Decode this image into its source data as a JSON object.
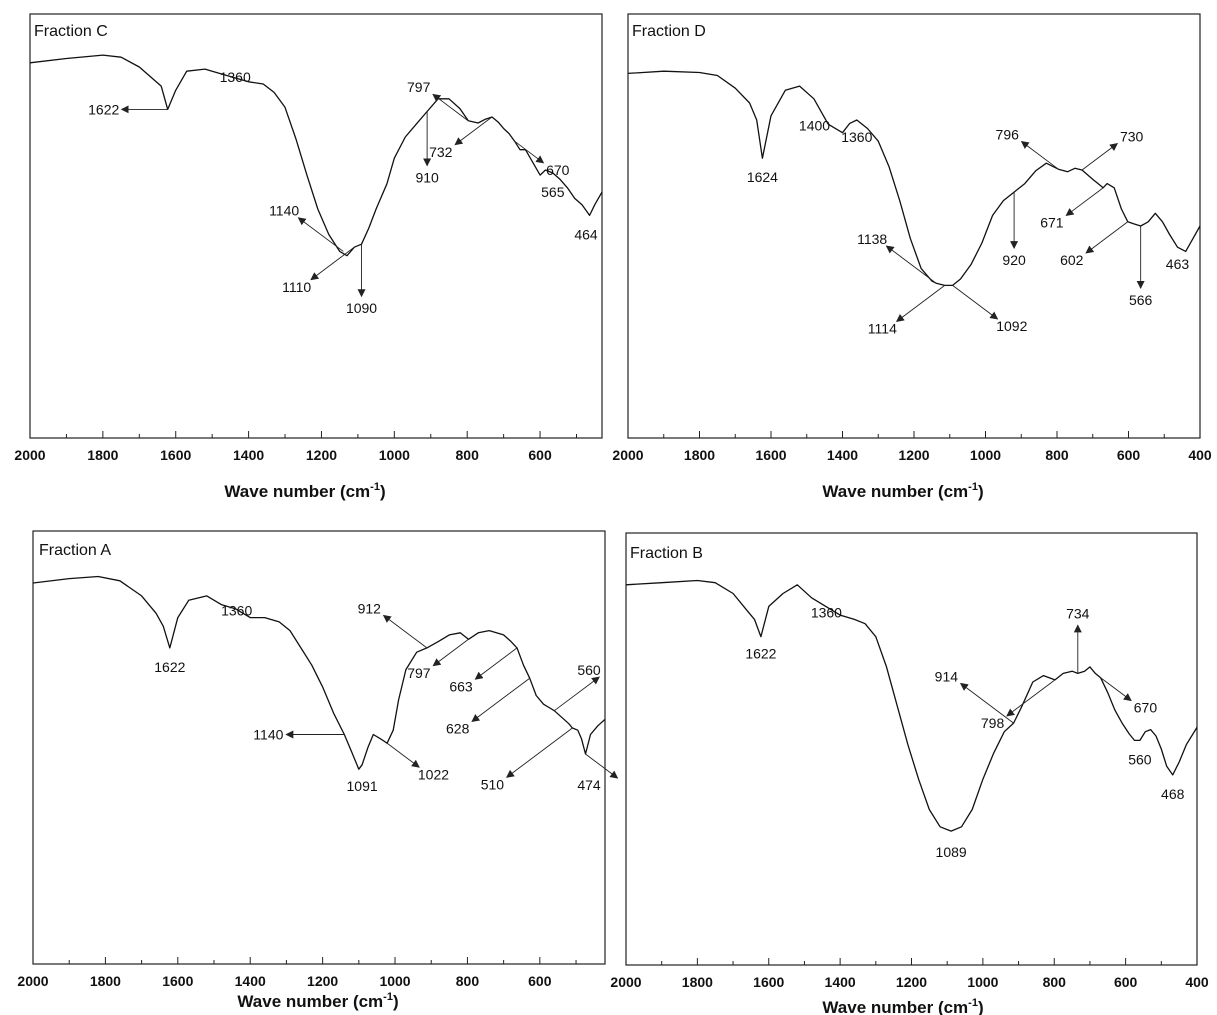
{
  "chart_data": [
    {
      "type": "line",
      "title": "Fraction C",
      "xlabel": "Wave number (cm-1)",
      "xlabel_main": "Wave number (cm",
      "xlabel_sup": "-1",
      "xlabel_tail": ")",
      "xlim": [
        2000,
        430
      ],
      "x_ticks": [
        2000,
        1800,
        1600,
        1400,
        1200,
        1000,
        800,
        600
      ],
      "x_tick_labels": [
        "2000",
        "1800",
        "1600",
        "1400",
        "1200",
        "1000",
        "800",
        "600"
      ],
      "ylim": [
        0,
        1
      ],
      "y_unit": "relative transmittance (no printed scale)",
      "series": [
        {
          "x": [
            2000,
            1900,
            1800,
            1750,
            1700,
            1660,
            1640,
            1622,
            1600,
            1570,
            1520,
            1480,
            1440,
            1400,
            1360,
            1330,
            1300,
            1270,
            1240,
            1210,
            1180,
            1150,
            1130,
            1110,
            1090,
            1070,
            1050,
            1020,
            1000,
            970,
            940,
            910,
            880,
            850,
            820,
            797,
            770,
            750,
            732,
            715,
            700,
            685,
            670,
            655,
            640,
            620,
            600,
            585,
            565,
            545,
            525,
            505,
            485,
            464,
            450,
            430
          ],
          "y": [
            0.885,
            0.895,
            0.903,
            0.898,
            0.875,
            0.845,
            0.83,
            0.775,
            0.82,
            0.865,
            0.87,
            0.86,
            0.85,
            0.84,
            0.835,
            0.815,
            0.78,
            0.705,
            0.62,
            0.54,
            0.48,
            0.44,
            0.43,
            0.45,
            0.457,
            0.495,
            0.54,
            0.6,
            0.66,
            0.71,
            0.74,
            0.77,
            0.8,
            0.8,
            0.777,
            0.748,
            0.743,
            0.752,
            0.757,
            0.745,
            0.73,
            0.718,
            0.7,
            0.68,
            0.68,
            0.65,
            0.62,
            0.632,
            0.625,
            0.61,
            0.59,
            0.565,
            0.55,
            0.525,
            0.55,
            0.58
          ]
        }
      ],
      "annotations": [
        {
          "text": "1622",
          "x": 1622,
          "y": 0.775
        },
        {
          "text": "1360",
          "x": 1360,
          "y": 0.835
        },
        {
          "text": "797",
          "x": 797,
          "y": 0.748
        },
        {
          "text": "910",
          "x": 910,
          "y": 0.77
        },
        {
          "text": "732",
          "x": 732,
          "y": 0.757
        },
        {
          "text": "670",
          "x": 670,
          "y": 0.7
        },
        {
          "text": "565",
          "x": 565,
          "y": 0.625
        },
        {
          "text": "464",
          "x": 464,
          "y": 0.525
        },
        {
          "text": "1140",
          "x": 1140,
          "y": 0.44
        },
        {
          "text": "1110",
          "x": 1110,
          "y": 0.45
        },
        {
          "text": "1090",
          "x": 1090,
          "y": 0.457
        }
      ]
    },
    {
      "type": "line",
      "title": "Fraction D",
      "xlabel": "Wave number (cm-1)",
      "xlabel_main": "Wave number (cm",
      "xlabel_sup": "-1",
      "xlabel_tail": ")",
      "xlim": [
        2000,
        400
      ],
      "x_ticks": [
        2000,
        1800,
        1600,
        1400,
        1200,
        1000,
        800,
        600,
        400
      ],
      "x_tick_labels": [
        "2000",
        "1800",
        "1600",
        "1400",
        "1200",
        "1000",
        "800",
        "600",
        "400"
      ],
      "ylim": [
        0,
        1
      ],
      "y_unit": "relative transmittance (no printed scale)",
      "series": [
        {
          "x": [
            2000,
            1900,
            1800,
            1750,
            1700,
            1660,
            1640,
            1624,
            1600,
            1560,
            1520,
            1480,
            1440,
            1400,
            1380,
            1360,
            1330,
            1300,
            1270,
            1240,
            1210,
            1180,
            1150,
            1138,
            1114,
            1092,
            1070,
            1040,
            1010,
            980,
            950,
            920,
            890,
            860,
            830,
            796,
            770,
            750,
            730,
            700,
            685,
            671,
            660,
            640,
            620,
            602,
            585,
            566,
            545,
            525,
            505,
            485,
            463,
            440,
            420,
            400
          ],
          "y": [
            0.86,
            0.865,
            0.862,
            0.855,
            0.825,
            0.79,
            0.75,
            0.66,
            0.76,
            0.82,
            0.83,
            0.8,
            0.74,
            0.72,
            0.742,
            0.75,
            0.73,
            0.7,
            0.64,
            0.56,
            0.47,
            0.4,
            0.37,
            0.365,
            0.36,
            0.36,
            0.375,
            0.41,
            0.46,
            0.525,
            0.56,
            0.58,
            0.6,
            0.63,
            0.648,
            0.634,
            0.628,
            0.636,
            0.632,
            0.61,
            0.6,
            0.59,
            0.6,
            0.59,
            0.54,
            0.51,
            0.505,
            0.5,
            0.51,
            0.53,
            0.51,
            0.48,
            0.45,
            0.44,
            0.47,
            0.5
          ]
        }
      ],
      "annotations": [
        {
          "text": "1624",
          "x": 1624,
          "y": 0.66
        },
        {
          "text": "1400",
          "x": 1400,
          "y": 0.72
        },
        {
          "text": "1360",
          "x": 1360,
          "y": 0.75
        },
        {
          "text": "796",
          "x": 796,
          "y": 0.634
        },
        {
          "text": "730",
          "x": 730,
          "y": 0.632
        },
        {
          "text": "671",
          "x": 671,
          "y": 0.59
        },
        {
          "text": "920",
          "x": 920,
          "y": 0.58
        },
        {
          "text": "602",
          "x": 602,
          "y": 0.51
        },
        {
          "text": "566",
          "x": 566,
          "y": 0.5
        },
        {
          "text": "463",
          "x": 463,
          "y": 0.45
        },
        {
          "text": "1138",
          "x": 1138,
          "y": 0.365
        },
        {
          "text": "1114",
          "x": 1114,
          "y": 0.36
        },
        {
          "text": "1092",
          "x": 1092,
          "y": 0.36
        }
      ]
    },
    {
      "type": "line",
      "title": "Fraction A",
      "xlabel": "Wave number (cm-1)",
      "xlabel_main": "Wave number (cm",
      "xlabel_sup": "-1",
      "xlabel_tail": ")",
      "xlim": [
        2000,
        420
      ],
      "x_ticks": [
        2000,
        1800,
        1600,
        1400,
        1200,
        1000,
        800,
        600
      ],
      "x_tick_labels": [
        "2000",
        "1800",
        "1600",
        "1400",
        "1200",
        "1000",
        "800",
        "600"
      ],
      "ylim": [
        0,
        1
      ],
      "y_unit": "relative transmittance (no printed scale)",
      "series": [
        {
          "x": [
            2000,
            1900,
            1820,
            1760,
            1700,
            1660,
            1640,
            1622,
            1600,
            1570,
            1520,
            1480,
            1440,
            1400,
            1360,
            1320,
            1290,
            1260,
            1230,
            1200,
            1170,
            1140,
            1120,
            1100,
            1091,
            1075,
            1060,
            1040,
            1022,
            1005,
            990,
            970,
            940,
            912,
            880,
            850,
            820,
            797,
            770,
            740,
            700,
            680,
            663,
            645,
            628,
            610,
            590,
            570,
            560,
            540,
            520,
            510,
            495,
            485,
            474,
            460,
            440,
            420
          ],
          "y": [
            0.88,
            0.89,
            0.895,
            0.885,
            0.85,
            0.81,
            0.78,
            0.73,
            0.8,
            0.84,
            0.85,
            0.83,
            0.82,
            0.8,
            0.8,
            0.79,
            0.77,
            0.73,
            0.69,
            0.64,
            0.58,
            0.53,
            0.49,
            0.45,
            0.46,
            0.5,
            0.53,
            0.52,
            0.51,
            0.54,
            0.61,
            0.68,
            0.72,
            0.73,
            0.745,
            0.76,
            0.765,
            0.75,
            0.765,
            0.77,
            0.76,
            0.745,
            0.73,
            0.69,
            0.66,
            0.62,
            0.6,
            0.59,
            0.585,
            0.57,
            0.555,
            0.545,
            0.54,
            0.52,
            0.485,
            0.53,
            0.55,
            0.565
          ]
        }
      ],
      "annotations": [
        {
          "text": "1622",
          "x": 1622,
          "y": 0.73
        },
        {
          "text": "1360",
          "x": 1360,
          "y": 0.8
        },
        {
          "text": "912",
          "x": 912,
          "y": 0.73
        },
        {
          "text": "797",
          "x": 797,
          "y": 0.75
        },
        {
          "text": "663",
          "x": 663,
          "y": 0.73
        },
        {
          "text": "628",
          "x": 628,
          "y": 0.66
        },
        {
          "text": "560",
          "x": 560,
          "y": 0.585
        },
        {
          "text": "510",
          "x": 510,
          "y": 0.545
        },
        {
          "text": "474",
          "x": 474,
          "y": 0.485
        },
        {
          "text": "1140",
          "x": 1140,
          "y": 0.53
        },
        {
          "text": "1091",
          "x": 1091,
          "y": 0.46
        },
        {
          "text": "1022",
          "x": 1022,
          "y": 0.51
        }
      ]
    },
    {
      "type": "line",
      "title": "Fraction B",
      "xlabel": "Wave number (cm-1)",
      "xlabel_main": "Wave number (cm",
      "xlabel_sup": "-1",
      "xlabel_tail": ")",
      "xlim": [
        2000,
        400
      ],
      "x_ticks": [
        2000,
        1800,
        1600,
        1400,
        1200,
        1000,
        800,
        600,
        400
      ],
      "x_tick_labels": [
        "2000",
        "1800",
        "1600",
        "1400",
        "1200",
        "1000",
        "800",
        "600",
        "400"
      ],
      "ylim": [
        0,
        1
      ],
      "y_unit": "relative transmittance (no printed scale)",
      "series": [
        {
          "x": [
            2000,
            1900,
            1800,
            1750,
            1700,
            1660,
            1640,
            1622,
            1600,
            1560,
            1520,
            1480,
            1440,
            1400,
            1360,
            1330,
            1300,
            1270,
            1240,
            1210,
            1180,
            1150,
            1120,
            1089,
            1060,
            1030,
            1000,
            970,
            940,
            914,
            890,
            860,
            830,
            798,
            775,
            750,
            734,
            715,
            700,
            685,
            670,
            650,
            630,
            610,
            590,
            575,
            560,
            545,
            530,
            515,
            500,
            485,
            468,
            450,
            430,
            400
          ],
          "y": [
            0.88,
            0.885,
            0.89,
            0.885,
            0.86,
            0.82,
            0.8,
            0.76,
            0.83,
            0.86,
            0.88,
            0.85,
            0.83,
            0.81,
            0.8,
            0.79,
            0.76,
            0.69,
            0.6,
            0.51,
            0.43,
            0.36,
            0.32,
            0.31,
            0.32,
            0.36,
            0.43,
            0.49,
            0.54,
            0.56,
            0.6,
            0.655,
            0.67,
            0.66,
            0.675,
            0.68,
            0.675,
            0.68,
            0.69,
            0.675,
            0.665,
            0.63,
            0.59,
            0.56,
            0.535,
            0.52,
            0.52,
            0.54,
            0.545,
            0.53,
            0.5,
            0.46,
            0.44,
            0.47,
            0.51,
            0.55
          ]
        }
      ],
      "annotations": [
        {
          "text": "1622",
          "x": 1622,
          "y": 0.76
        },
        {
          "text": "1360",
          "x": 1360,
          "y": 0.8
        },
        {
          "text": "914",
          "x": 914,
          "y": 0.56
        },
        {
          "text": "734",
          "x": 734,
          "y": 0.675
        },
        {
          "text": "798",
          "x": 798,
          "y": 0.66
        },
        {
          "text": "670",
          "x": 670,
          "y": 0.665
        },
        {
          "text": "560",
          "x": 560,
          "y": 0.52
        },
        {
          "text": "468",
          "x": 468,
          "y": 0.44
        },
        {
          "text": "1089",
          "x": 1089,
          "y": 0.31
        }
      ]
    }
  ]
}
